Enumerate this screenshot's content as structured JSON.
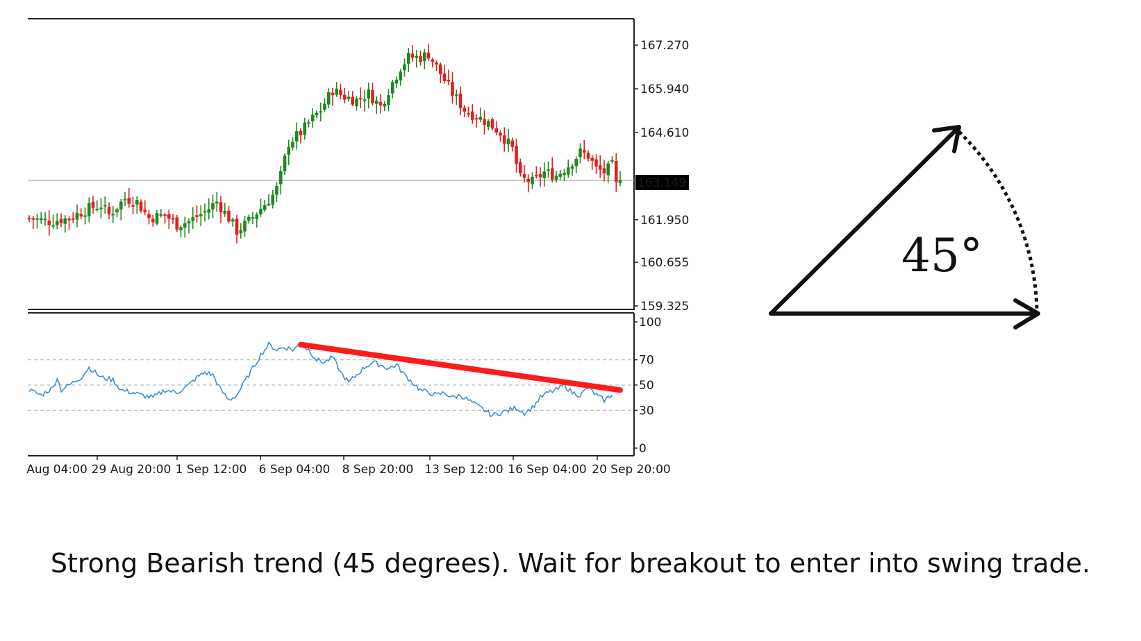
{
  "caption": "Strong Bearish trend (45 degrees). Wait for breakout to enter into swing trade.",
  "angle_label": "45°",
  "colors": {
    "bull": "#1e8a1e",
    "bear": "#e02020",
    "rsi_line": "#3a8fd9",
    "trendline": "#ff1a1a",
    "price_badge_bg": "#000000",
    "price_badge_text": "#ffffff",
    "arrows": "#111111"
  },
  "chart_data": [
    {
      "type": "candlestick",
      "title": "",
      "y_ticks": [
        "167.270",
        "165.940",
        "164.610",
        "161.950",
        "160.655",
        "159.325"
      ],
      "ylim": [
        159.325,
        167.8
      ],
      "current_price": "163.149",
      "current_price_value": 163.149,
      "x_ticks": [
        "Aug 04:00",
        "29 Aug 20:00",
        "1 Sep 12:00",
        "6 Sep 04:00",
        "8 Sep 20:00",
        "13 Sep 12:00",
        "16 Sep 04:00",
        "20 Sep 20:00"
      ],
      "close_path": [
        [
          0,
          162.0
        ],
        [
          5,
          161.9
        ],
        [
          10,
          162.0
        ],
        [
          15,
          162.3
        ],
        [
          18,
          162.4
        ],
        [
          20,
          162.1
        ],
        [
          24,
          162.6
        ],
        [
          27,
          162.5
        ],
        [
          30,
          162.0
        ],
        [
          34,
          162.1
        ],
        [
          37,
          161.8
        ],
        [
          40,
          161.9
        ],
        [
          44,
          162.2
        ],
        [
          47,
          162.5
        ],
        [
          50,
          162.0
        ],
        [
          52,
          161.6
        ],
        [
          55,
          161.9
        ],
        [
          58,
          162.3
        ],
        [
          61,
          162.7
        ],
        [
          62,
          162.9
        ],
        [
          63,
          163.3
        ],
        [
          65,
          164.3
        ],
        [
          68,
          164.6
        ],
        [
          70,
          164.9
        ],
        [
          73,
          165.3
        ],
        [
          76,
          165.9
        ],
        [
          79,
          165.7
        ],
        [
          82,
          165.6
        ],
        [
          85,
          165.8
        ],
        [
          88,
          165.4
        ],
        [
          90,
          165.9
        ],
        [
          93,
          166.6
        ],
        [
          95,
          166.9
        ],
        [
          98,
          166.9
        ],
        [
          100,
          167.0
        ],
        [
          103,
          166.4
        ],
        [
          106,
          165.8
        ],
        [
          109,
          165.3
        ],
        [
          112,
          165.1
        ],
        [
          115,
          164.9
        ],
        [
          118,
          164.6
        ],
        [
          121,
          164.1
        ],
        [
          123,
          163.2
        ],
        [
          126,
          163.1
        ],
        [
          129,
          163.4
        ],
        [
          132,
          163.3
        ],
        [
          135,
          163.6
        ],
        [
          138,
          164.0
        ],
        [
          140,
          163.9
        ],
        [
          142,
          163.5
        ],
        [
          144,
          163.4
        ],
        [
          146,
          163.6
        ],
        [
          147,
          163.0
        ],
        [
          148,
          163.3
        ]
      ],
      "marked_candles": [
        [
          6,
          "bull"
        ],
        [
          13,
          "bear"
        ]
      ]
    },
    {
      "type": "line",
      "title": "",
      "y_ticks": [
        "100",
        "70",
        "50",
        "30",
        "0"
      ],
      "ylim": [
        0,
        100
      ],
      "levels": [
        70,
        50,
        30
      ],
      "series": [
        {
          "values": [
            [
              0,
              46
            ],
            [
              3,
              42
            ],
            [
              6,
              48
            ],
            [
              7,
              56
            ],
            [
              8,
              46
            ],
            [
              10,
              50
            ],
            [
              13,
              56
            ],
            [
              15,
              64
            ],
            [
              18,
              56
            ],
            [
              21,
              54
            ],
            [
              23,
              46
            ],
            [
              26,
              44
            ],
            [
              28,
              42
            ],
            [
              31,
              40
            ],
            [
              34,
              46
            ],
            [
              37,
              44
            ],
            [
              40,
              50
            ],
            [
              42,
              56
            ],
            [
              44,
              60
            ],
            [
              46,
              58
            ],
            [
              48,
              46
            ],
            [
              50,
              38
            ],
            [
              52,
              42
            ],
            [
              55,
              58
            ],
            [
              58,
              74
            ],
            [
              60,
              82
            ],
            [
              62,
              78
            ],
            [
              64,
              80
            ],
            [
              66,
              78
            ],
            [
              68,
              82
            ],
            [
              70,
              78
            ],
            [
              72,
              70
            ],
            [
              74,
              68
            ],
            [
              76,
              72
            ],
            [
              78,
              60
            ],
            [
              80,
              52
            ],
            [
              82,
              58
            ],
            [
              84,
              64
            ],
            [
              86,
              68
            ],
            [
              88,
              66
            ],
            [
              90,
              63
            ],
            [
              92,
              66
            ],
            [
              94,
              58
            ],
            [
              96,
              52
            ],
            [
              98,
              46
            ],
            [
              100,
              44
            ],
            [
              102,
              42
            ],
            [
              104,
              44
            ],
            [
              106,
              40
            ],
            [
              108,
              42
            ],
            [
              110,
              38
            ],
            [
              112,
              34
            ],
            [
              114,
              30
            ],
            [
              116,
              26
            ],
            [
              118,
              28
            ],
            [
              120,
              30
            ],
            [
              122,
              32
            ],
            [
              124,
              28
            ],
            [
              126,
              32
            ],
            [
              128,
              40
            ],
            [
              130,
              44
            ],
            [
              132,
              46
            ],
            [
              134,
              50
            ],
            [
              136,
              44
            ],
            [
              138,
              42
            ],
            [
              140,
              48
            ],
            [
              142,
              42
            ],
            [
              144,
              38
            ],
            [
              146,
              42
            ]
          ]
        }
      ],
      "trendline": [
        [
          68,
          82
        ],
        [
          148,
          46
        ]
      ]
    }
  ]
}
